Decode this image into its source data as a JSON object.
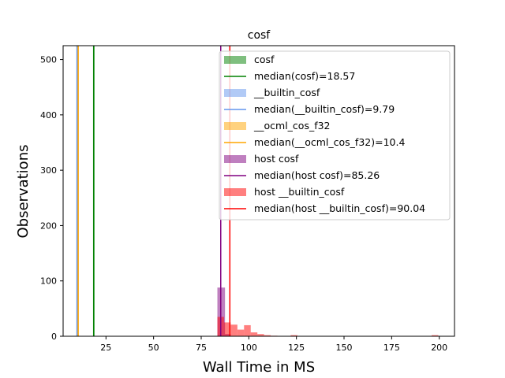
{
  "chart_data": {
    "type": "histogram",
    "title": "cosf",
    "xlabel": "Wall Time in MS",
    "ylabel": "Observations",
    "xlim": [
      2.5,
      208
    ],
    "ylim": [
      0,
      525
    ],
    "x_ticks": [
      25,
      50,
      75,
      100,
      125,
      150,
      175,
      200
    ],
    "y_ticks": [
      0,
      100,
      200,
      300,
      400,
      500
    ],
    "grid": false,
    "legend_position": "top-right",
    "series": [
      {
        "name": " cosf",
        "kind": "hist",
        "color": "#008000",
        "opacity": 0.5,
        "bins": [
          [
            18.2,
            19.0,
            525
          ]
        ]
      },
      {
        "name": " median(cosf)=18.57",
        "kind": "vline",
        "color": "#008000",
        "x": 18.57
      },
      {
        "name": " __builtin_cosf",
        "kind": "hist",
        "color": "#6495ed",
        "opacity": 0.5,
        "bins": [
          [
            9.5,
            10.1,
            525
          ]
        ]
      },
      {
        "name": " median(__builtin_cosf)=9.79",
        "kind": "vline",
        "color": "#6495ed",
        "x": 9.79
      },
      {
        "name": " __ocml_cos_f32",
        "kind": "hist",
        "color": "#ffa500",
        "opacity": 0.5,
        "bins": [
          [
            10.1,
            10.7,
            525
          ]
        ]
      },
      {
        "name": " median(__ocml_cos_f32)=10.4",
        "kind": "vline",
        "color": "#ffa500",
        "x": 10.4
      },
      {
        "name": "host cosf",
        "kind": "hist",
        "color": "#800080",
        "opacity": 0.5,
        "bins": [
          [
            83.5,
            87.5,
            88
          ],
          [
            87.5,
            90.5,
            4
          ]
        ]
      },
      {
        "name": "median(host cosf)=85.26",
        "kind": "vline",
        "color": "#800080",
        "x": 85.26
      },
      {
        "name": "host __builtin_cosf",
        "kind": "hist",
        "color": "#ff0000",
        "opacity": 0.5,
        "bins": [
          [
            83.5,
            87.0,
            35
          ],
          [
            87.0,
            90.5,
            25
          ],
          [
            90.5,
            94.0,
            21
          ],
          [
            94.0,
            97.5,
            12
          ],
          [
            97.5,
            101.0,
            20
          ],
          [
            101.0,
            104.5,
            7
          ],
          [
            104.5,
            108.0,
            4
          ],
          [
            108.0,
            111.5,
            2
          ],
          [
            111.5,
            115.0,
            1
          ],
          [
            122.0,
            125.5,
            2
          ],
          [
            196.0,
            199.5,
            2
          ]
        ]
      },
      {
        "name": "median(host __builtin_cosf)=90.04",
        "kind": "vline",
        "color": "#ff0000",
        "x": 90.04
      }
    ]
  }
}
